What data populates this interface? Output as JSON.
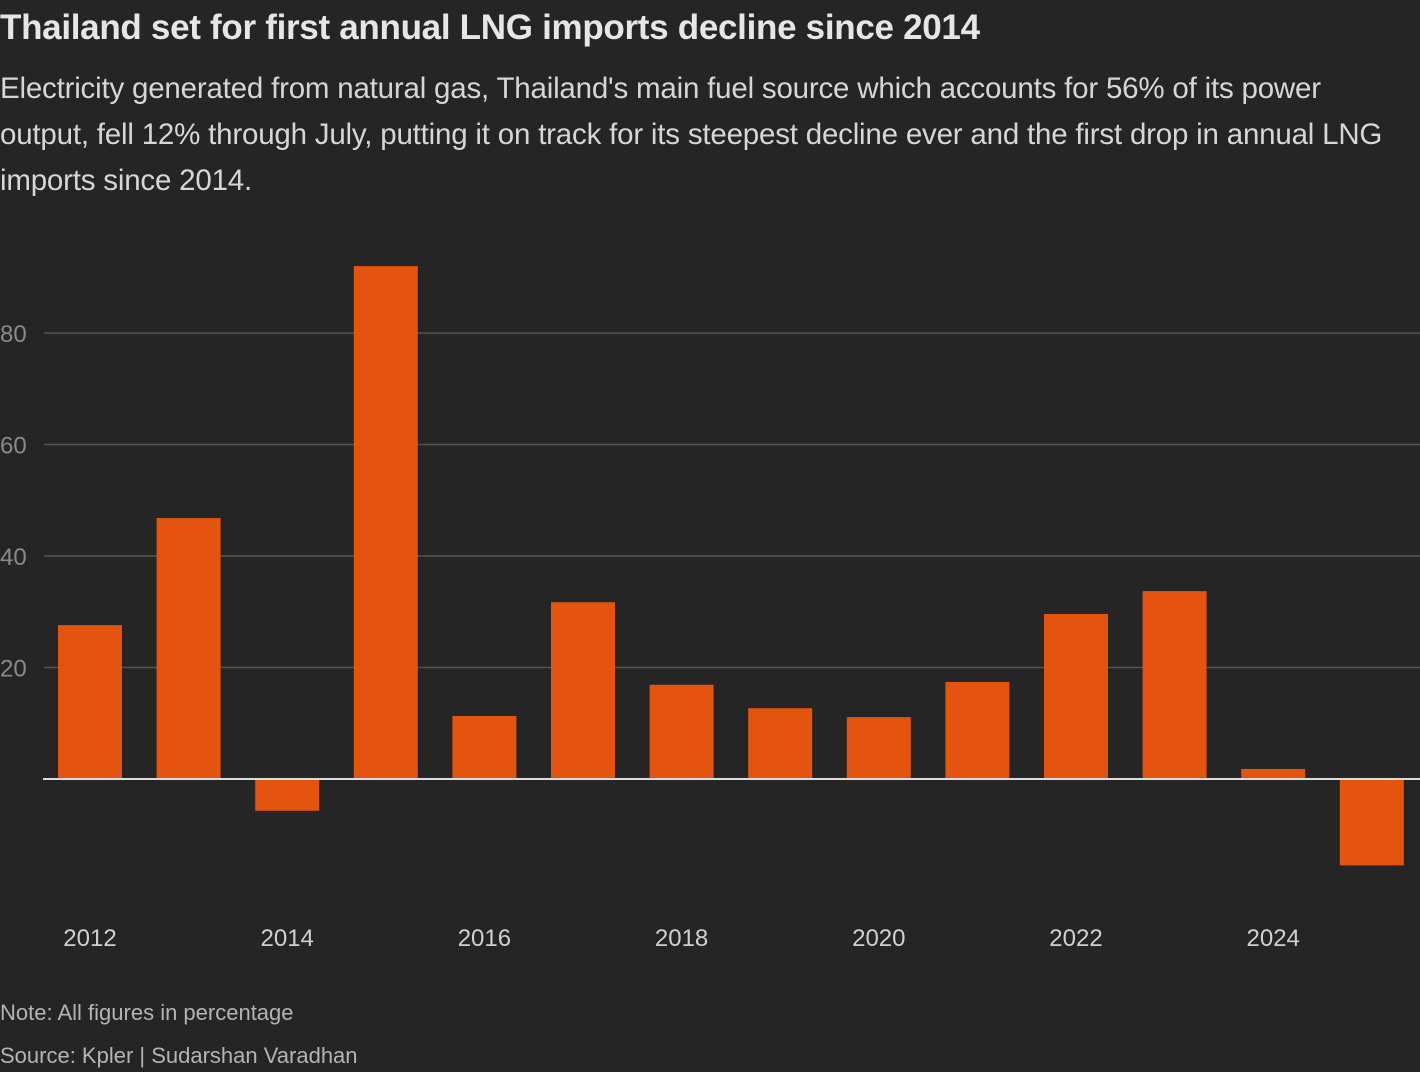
{
  "header": {
    "title": "Thailand set for first annual LNG imports decline since 2014",
    "subtitle": "Electricity generated from natural gas, Thailand's main fuel source which accounts for 56% of its power output, fell 12% through July, putting it on track for its steepest decline ever and the first drop in annual LNG imports since 2014."
  },
  "footer": {
    "note": "Note: All figures in percentage",
    "source": "Source: Kpler | Sudarshan Varadhan"
  },
  "colors": {
    "background": "#252525",
    "bar": "#E4540F",
    "gridline": "#555555",
    "baseline": "#dddddd"
  },
  "chart_data": {
    "type": "bar",
    "title": "Thailand set for first annual LNG imports decline since 2014",
    "xlabel": "",
    "ylabel": "",
    "categories": [
      "2012",
      "2013",
      "2014",
      "2015",
      "2016",
      "2017",
      "2018",
      "2019",
      "2020",
      "2021",
      "2022",
      "2023",
      "2024",
      "2025"
    ],
    "values": [
      27.6,
      46.8,
      -5.7,
      92.0,
      11.3,
      31.7,
      16.9,
      12.7,
      11.1,
      17.4,
      29.6,
      33.7,
      1.8,
      -15.5
    ],
    "ylim": [
      -20,
      100
    ],
    "yticks": [
      20,
      40,
      60,
      80
    ],
    "ytick_labels": [
      "20",
      "40",
      "60",
      "80"
    ],
    "xtick_labels": [
      "2012",
      "2014",
      "2016",
      "2018",
      "2020",
      "2022",
      "2024"
    ],
    "grid": true,
    "legend": "none",
    "unit": "percent"
  }
}
